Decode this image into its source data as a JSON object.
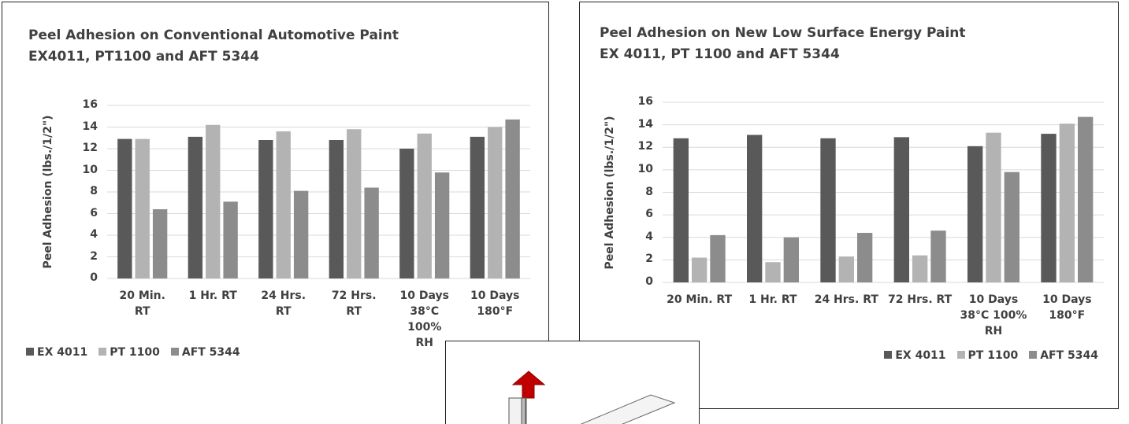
{
  "chart_data": [
    {
      "type": "bar",
      "title": "Peel Adhesion on Conventional Automotive Paint",
      "subtitle": "EX4011, PT1100 and AFT 5344",
      "ylabel": "Peel Adhesion (lbs./1/2\")",
      "categories": [
        "20 Min. RT",
        "1 Hr. RT",
        "24 Hrs. RT",
        "72 Hrs. RT",
        "10 Days 38°C 100% RH",
        "10 Days 180°F"
      ],
      "series": [
        {
          "name": "EX 4011",
          "color": "#595959",
          "values": [
            12.9,
            13.1,
            12.8,
            12.8,
            12.0,
            13.1
          ]
        },
        {
          "name": "PT 1100",
          "color": "#b3b3b3",
          "values": [
            12.9,
            14.2,
            13.6,
            13.8,
            13.4,
            14.0
          ]
        },
        {
          "name": "AFT 5344",
          "color": "#8c8c8c",
          "values": [
            6.4,
            7.1,
            8.1,
            8.4,
            9.8,
            14.7
          ]
        }
      ],
      "ylim": [
        0,
        16
      ],
      "yticks": [
        0,
        2,
        4,
        6,
        8,
        10,
        12,
        14,
        16
      ],
      "grid": true,
      "legend": "bottom-left"
    },
    {
      "type": "bar",
      "title": "Peel Adhesion on New Low Surface Energy Paint",
      "subtitle": "EX 4011, PT 1100 and AFT 5344",
      "ylabel": "Peel Adhesion (lbs./1/2\")",
      "categories": [
        "20 Min. RT",
        "1 Hr. RT",
        "24 Hrs. RT",
        "72 Hrs. RT",
        "10 Days 38°C 100% RH",
        "10 Days 180°F"
      ],
      "series": [
        {
          "name": "EX 4011",
          "color": "#595959",
          "values": [
            12.8,
            13.1,
            12.8,
            12.9,
            12.1,
            13.2
          ]
        },
        {
          "name": "PT 1100",
          "color": "#b3b3b3",
          "values": [
            2.2,
            1.8,
            2.3,
            2.4,
            13.3,
            14.1
          ]
        },
        {
          "name": "AFT 5344",
          "color": "#8c8c8c",
          "values": [
            4.2,
            4.0,
            4.4,
            4.6,
            9.8,
            14.7
          ]
        }
      ],
      "ylim": [
        0,
        16
      ],
      "yticks": [
        0,
        2,
        4,
        6,
        8,
        10,
        12,
        14,
        16
      ],
      "grid": true,
      "legend": "bottom-right"
    }
  ]
}
